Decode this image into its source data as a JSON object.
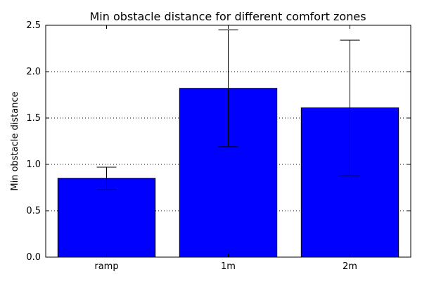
{
  "chart_data": {
    "type": "bar",
    "title": "Min obstacle distance for different comfort zones",
    "xlabel": "",
    "ylabel": "Min obstacle distance",
    "categories": [
      "ramp",
      "1m",
      "2m"
    ],
    "values": [
      0.85,
      1.82,
      1.61
    ],
    "error": [
      0.12,
      0.63,
      0.73
    ],
    "ylim": [
      0.0,
      2.5
    ],
    "yticks": [
      0.0,
      0.5,
      1.0,
      1.5,
      2.0,
      2.5
    ],
    "ytick_labels": [
      "0.0",
      "0.5",
      "1.0",
      "1.5",
      "2.0",
      "2.5"
    ],
    "grid": "y-dotted",
    "legend": "none",
    "colors": {
      "bar": "#0000ff",
      "edge": "#000000",
      "error": "#000000",
      "grid": "#000000"
    }
  }
}
